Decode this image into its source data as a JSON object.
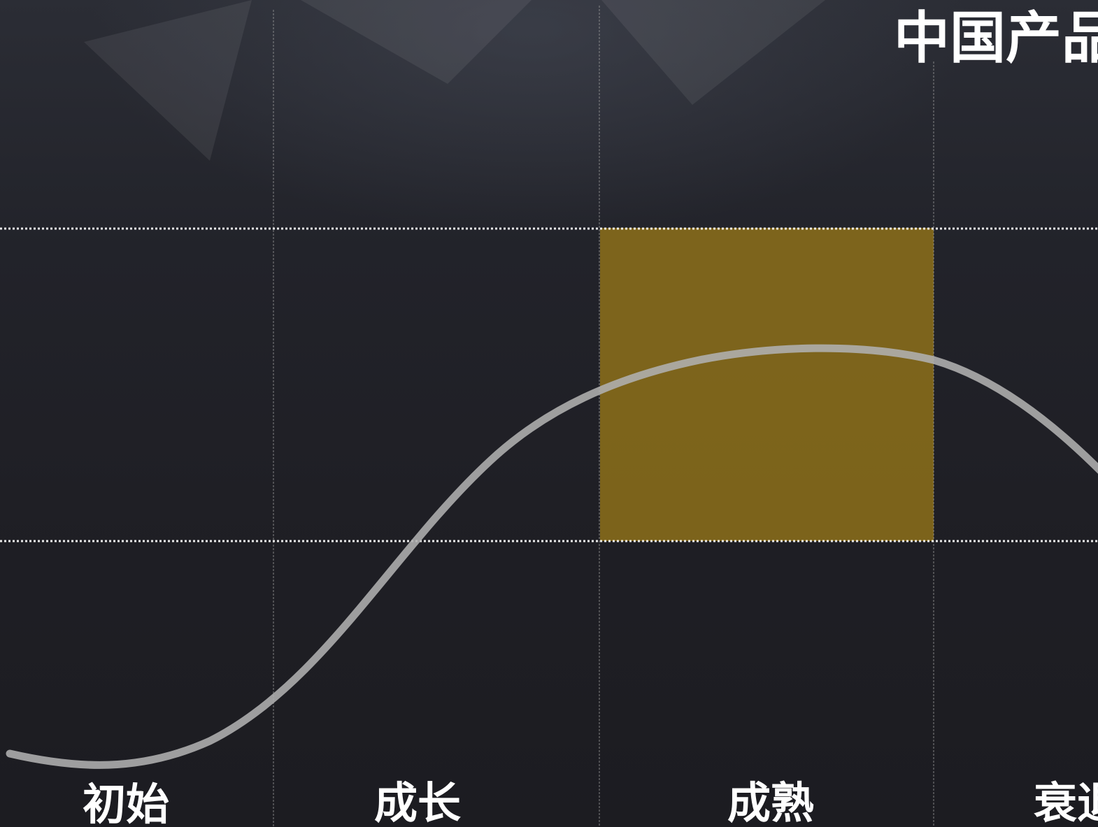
{
  "brand": {
    "logo_text": "中国产品经"
  },
  "colors": {
    "background": "#1c1c21",
    "highlight": "#8a6d1a",
    "curve": "#a9a9a9",
    "grid_dotted": "#ffffff",
    "grid_vertical": "#9a9a9a"
  },
  "stages": [
    {
      "label": "初始",
      "highlighted": false
    },
    {
      "label": "成长",
      "highlighted": false
    },
    {
      "label": "成熟",
      "highlighted": true
    },
    {
      "label": "衰退",
      "highlighted": false
    }
  ]
}
